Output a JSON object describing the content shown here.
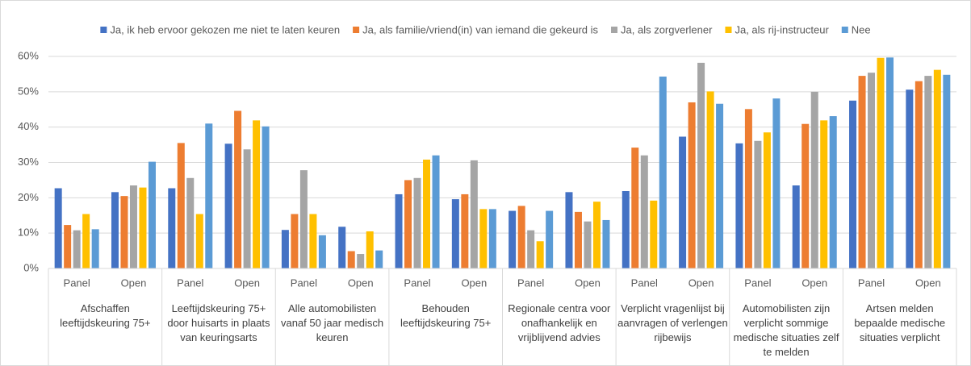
{
  "chart_data": {
    "type": "bar",
    "categories": [
      "Panel",
      "Open",
      "Panel",
      "Open",
      "Panel",
      "Open",
      "Panel",
      "Open",
      "Panel",
      "Open",
      "Panel",
      "Open",
      "Panel",
      "Open",
      "Panel",
      "Open"
    ],
    "groups": [
      "Afschaffen leeftijdskeuring 75+",
      "Leeftijdskeuring 75+ door huisarts in plaats van keuringsarts",
      "Alle automobilisten vanaf 50 jaar medisch keuren",
      "Behouden leeftijdskeuring 75+",
      "Regionale centra voor onafhankelijk en vrijblijvend advies",
      "Verplicht vragenlijst bij aanvragen of verlengen rijbewijs",
      "Automobilisten zijn verplicht sommige medische situaties zelf te melden",
      "Artsen melden bepaalde medische situaties verplicht"
    ],
    "series": [
      {
        "name": "Ja, ik heb ervoor gekozen me niet te laten keuren",
        "color": "#4472c4",
        "values": [
          22.7,
          21.6,
          22.7,
          35.3,
          10.9,
          11.8,
          21.0,
          19.6,
          16.3,
          21.6,
          21.9,
          37.3,
          35.4,
          23.5,
          47.5,
          50.6
        ]
      },
      {
        "name": "Ja, als familie/vriend(in) van iemand die gekeurd is",
        "color": "#ed7d31",
        "values": [
          12.3,
          20.5,
          35.5,
          44.6,
          15.4,
          4.9,
          25.0,
          21.0,
          17.7,
          16.0,
          34.2,
          47.0,
          45.1,
          40.9,
          54.5,
          53.0
        ]
      },
      {
        "name": "Ja, als zorgverlener",
        "color": "#a5a5a5",
        "values": [
          10.8,
          23.5,
          25.6,
          33.7,
          27.8,
          4.1,
          25.6,
          30.6,
          10.8,
          13.3,
          32.0,
          58.2,
          36.1,
          50.0,
          55.4,
          54.5
        ]
      },
      {
        "name": "Ja, als rij-instructeur",
        "color": "#ffc000",
        "values": [
          15.4,
          22.9,
          15.4,
          41.9,
          15.4,
          10.5,
          30.8,
          16.8,
          7.7,
          18.9,
          19.2,
          50.1,
          38.5,
          41.9,
          59.6,
          56.2
        ]
      },
      {
        "name": "Nee",
        "color": "#5b9bd5",
        "values": [
          11.1,
          30.2,
          41.0,
          40.2,
          9.4,
          5.1,
          32.0,
          16.8,
          16.3,
          13.7,
          54.3,
          46.6,
          48.1,
          43.1,
          59.7,
          54.8
        ]
      }
    ],
    "ylim": [
      0,
      60
    ],
    "yticks": [
      {
        "value": 0,
        "label": "0%"
      },
      {
        "value": 10,
        "label": "10%"
      },
      {
        "value": 20,
        "label": "20%"
      },
      {
        "value": 30,
        "label": "30%"
      },
      {
        "value": 40,
        "label": "40%"
      },
      {
        "value": 50,
        "label": "50%"
      },
      {
        "value": 60,
        "label": "60%"
      }
    ],
    "grid": true,
    "legend": "top"
  }
}
